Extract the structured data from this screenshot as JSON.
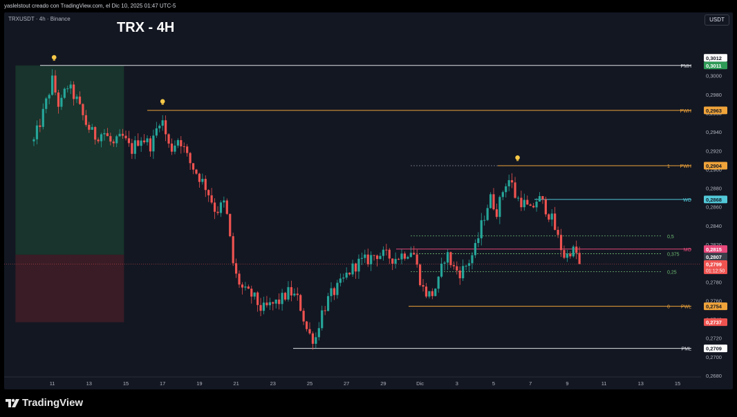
{
  "caption": "yaslelstout creado con TradingView.com, el Dic 10, 2025 01:47 UTC-5",
  "symbol_label": "TRXUSDT · 4h · Binance",
  "title": "TRX - 4H",
  "currency": "USDT",
  "brand": "TradingView",
  "icons": {
    "idea_marker": "lightbulb-icon",
    "brand_logo": "tradingview-logo-icon"
  },
  "colors": {
    "background": "#131722",
    "up": "#26a69a",
    "down": "#ef5350",
    "pmh": "#e1e3e8",
    "pwh": "#f0a43a",
    "wo": "#52c8d8",
    "mo": "#e8487a",
    "pwl": "#f0a43a",
    "pml": "#e1e3e8",
    "fib": "#6fbf73",
    "target_zone": "#1e4d35",
    "stop_zone": "#4a1f28",
    "current": "#ef5350"
  },
  "chart_data": {
    "type": "candlestick",
    "ylim": [
      0.268,
      0.303
    ],
    "y_ticks": [
      "0,3000",
      "0,2980",
      "0,2960",
      "0,2940",
      "0,2920",
      "0,2900",
      "0,2880",
      "0,2860",
      "0,2840",
      "0,2820",
      "0,2800",
      "0,2780",
      "0,2760",
      "0,2740",
      "0,2720",
      "0,2700",
      "0,2680"
    ],
    "x_ticks": [
      "11",
      "13",
      "15",
      "17",
      "19",
      "21",
      "23",
      "25",
      "27",
      "29",
      "Dic",
      "3",
      "5",
      "7",
      "9",
      "11",
      "13",
      "15",
      "17"
    ],
    "levels": [
      {
        "label": "PMH",
        "price": 0.3011,
        "value": "0,3011",
        "extra_value": "0,3012"
      },
      {
        "label": "PWH",
        "price": 0.2963,
        "value": "0,2963"
      },
      {
        "label": "PWH",
        "price": 0.2904,
        "value": "0,2904"
      },
      {
        "label": "WO",
        "price": 0.2868,
        "value": "0,2868"
      },
      {
        "label": "MO",
        "price": 0.2815,
        "value": "0,2815",
        "extra_value": "0,2807"
      },
      {
        "label": "PWL",
        "price": 0.2754,
        "value": "0,2754"
      },
      {
        "label": "PML",
        "price": 0.2709,
        "value": "0,2709"
      }
    ],
    "fib_levels": [
      {
        "label": "1",
        "price": 0.2904
      },
      {
        "label": "0,5",
        "price": 0.2829
      },
      {
        "label": "0,375",
        "price": 0.281
      },
      {
        "label": "0,25",
        "price": 0.2791
      },
      {
        "label": "0",
        "price": 0.2754
      }
    ],
    "current_price": {
      "price": 0.2799,
      "value": "0,2799",
      "countdown": "01:12:50"
    },
    "stop_level": {
      "price": 0.2737,
      "value": "0,2737"
    },
    "position": {
      "entry": 0.2809,
      "target": 0.3011,
      "stop": 0.2737,
      "start_day": 9.0,
      "end_day": 14.9
    },
    "idea_markers": [
      {
        "x_day": 11.1,
        "price": 0.3013
      },
      {
        "x_day": 17.0,
        "price": 0.2966
      },
      {
        "x_day": 6.3,
        "price": 0.2906
      }
    ],
    "day_anchor": 10,
    "waypoints": [
      [
        10.0,
        0.293
      ],
      [
        10.5,
        0.296
      ],
      [
        11.0,
        0.2995
      ],
      [
        11.4,
        0.2965
      ],
      [
        11.8,
        0.299
      ],
      [
        12.3,
        0.2975
      ],
      [
        12.8,
        0.295
      ],
      [
        13.3,
        0.2935
      ],
      [
        13.8,
        0.294
      ],
      [
        14.3,
        0.2925
      ],
      [
        14.8,
        0.2935
      ],
      [
        15.3,
        0.292
      ],
      [
        15.8,
        0.2935
      ],
      [
        16.4,
        0.2925
      ],
      [
        16.9,
        0.2958
      ],
      [
        17.4,
        0.292
      ],
      [
        17.9,
        0.2935
      ],
      [
        18.4,
        0.291
      ],
      [
        18.9,
        0.2895
      ],
      [
        19.4,
        0.288
      ],
      [
        19.9,
        0.2855
      ],
      [
        20.4,
        0.2865
      ],
      [
        20.9,
        0.279
      ],
      [
        21.4,
        0.277
      ],
      [
        21.9,
        0.2765
      ],
      [
        22.4,
        0.275
      ],
      [
        22.9,
        0.2755
      ],
      [
        23.4,
        0.276
      ],
      [
        23.9,
        0.277
      ],
      [
        24.4,
        0.276
      ],
      [
        24.9,
        0.2725
      ],
      [
        25.3,
        0.2718
      ],
      [
        25.6,
        0.2745
      ],
      [
        26.1,
        0.2765
      ],
      [
        26.6,
        0.2775
      ],
      [
        27.1,
        0.279
      ],
      [
        27.6,
        0.28
      ],
      [
        28.1,
        0.2803
      ],
      [
        28.6,
        0.281
      ],
      [
        29.1,
        0.2808
      ],
      [
        29.6,
        0.2805
      ],
      [
        30.1,
        0.281
      ],
      [
        30.6,
        0.2815
      ],
      [
        30.9,
        0.279
      ],
      [
        31.2,
        0.277
      ],
      [
        31.6,
        0.2765
      ],
      [
        32.0,
        0.278
      ],
      [
        32.4,
        0.2812
      ],
      [
        32.8,
        0.2795
      ],
      [
        33.2,
        0.279
      ],
      [
        33.6,
        0.28
      ],
      [
        34.0,
        0.2815
      ],
      [
        34.4,
        0.2845
      ],
      [
        34.8,
        0.287
      ],
      [
        35.2,
        0.2855
      ],
      [
        35.6,
        0.2885
      ],
      [
        35.9,
        0.289
      ],
      [
        36.2,
        0.287
      ],
      [
        36.6,
        0.2865
      ],
      [
        37.0,
        0.2855
      ],
      [
        37.4,
        0.287
      ],
      [
        37.8,
        0.286
      ],
      [
        38.2,
        0.2845
      ],
      [
        38.6,
        0.282
      ],
      [
        38.9,
        0.2805
      ],
      [
        39.2,
        0.2815
      ],
      [
        39.5,
        0.281
      ],
      [
        39.8,
        0.2799
      ]
    ]
  }
}
